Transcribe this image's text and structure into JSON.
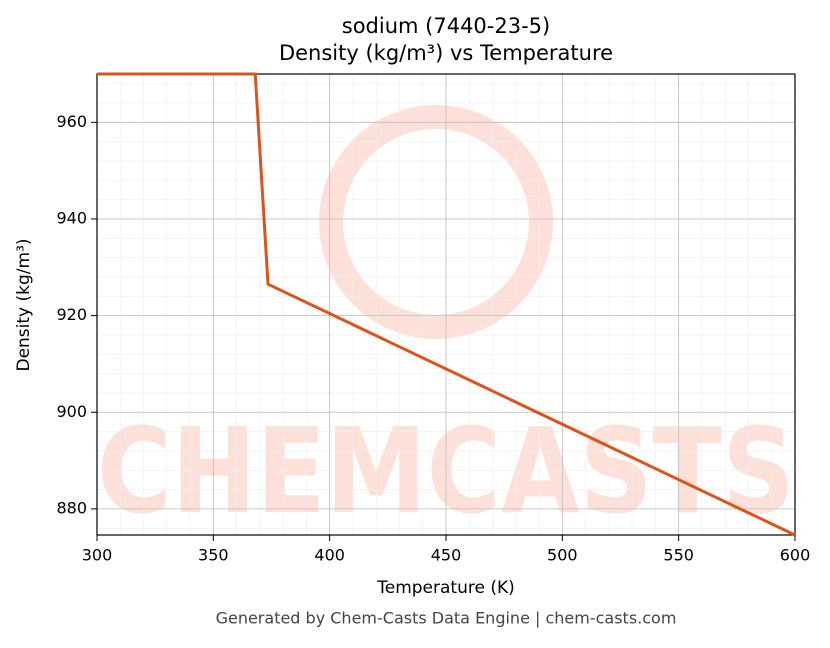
{
  "chart_data": {
    "type": "line",
    "title": "sodium (7440-23-5)",
    "subtitle": "Density (kg/m³) vs Temperature",
    "x_label": "Temperature (K)",
    "y_label": "Density (kg/m³)",
    "watermark": "CHEMCASTS",
    "footer": "Generated by Chem-Casts Data Engine | chem-casts.com",
    "x": [
      300,
      368,
      373.5,
      600
    ],
    "series": [
      {
        "name": "Density",
        "color": "#d9541e",
        "values": [
          970,
          970,
          926.5,
          874.6
        ]
      }
    ],
    "xlim": [
      300,
      600
    ],
    "xticks": [
      300,
      350,
      400,
      450,
      500,
      550,
      600
    ],
    "ylim": [
      874.6,
      970
    ],
    "yticks": [
      880,
      900,
      920,
      940,
      960
    ],
    "grid": true
  }
}
